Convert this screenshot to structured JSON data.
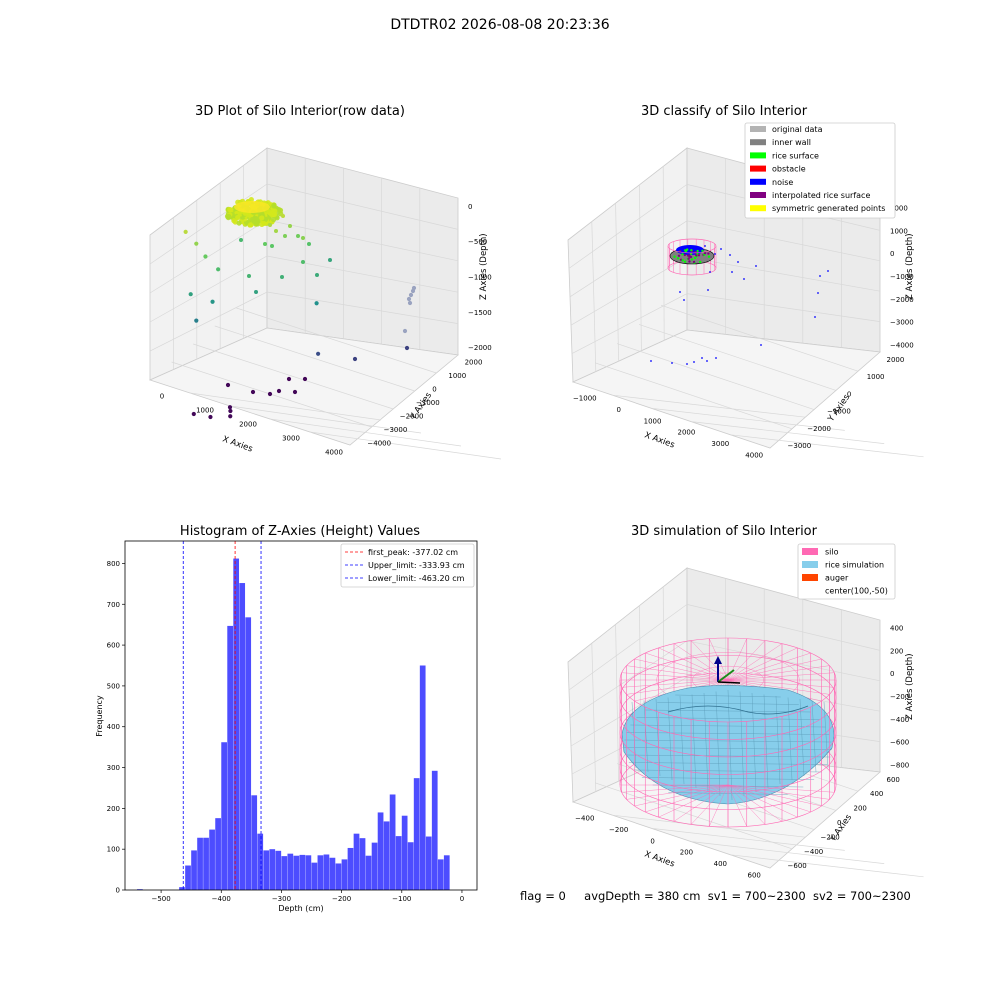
{
  "figure": {
    "title": "DTDTR02 2026-08-08 20:23:36",
    "status": {
      "flag": "flag = 0",
      "avg_depth": "avgDepth = 380 cm",
      "sv1": "sv1 = 700~2300",
      "sv2": "sv2 = 700~2300"
    }
  },
  "chart_data": [
    {
      "type": "scatter",
      "projection": "3d",
      "title": "3D Plot of Silo Interior(row data)",
      "xlabel": "X Axies",
      "ylabel": "Y Axies",
      "zlabel": "Z Axies (Depth)",
      "x_ticks": [
        "0",
        "1000",
        "2000",
        "3000",
        "4000"
      ],
      "y_ticks": [
        "−4000",
        "−3000",
        "−2000",
        "−1000",
        "0",
        "1000",
        "2000"
      ],
      "z_ticks": [
        "−2000",
        "−1500",
        "−1000",
        "−500",
        "0"
      ],
      "colormap": "viridis",
      "cluster_color": "#d4e81c",
      "points": [
        {
          "x": 300,
          "y": 0,
          "z": -220
        },
        {
          "x": 600,
          "y": 0,
          "z": -350
        },
        {
          "x": 800,
          "y": 100,
          "z": -500
        },
        {
          "x": 1100,
          "y": 200,
          "z": -650
        },
        {
          "x": 500,
          "y": -100,
          "z": -900
        },
        {
          "x": 1000,
          "y": 100,
          "z": -1000
        },
        {
          "x": 600,
          "y": 0,
          "z": -1200
        },
        {
          "x": 3700,
          "y": 500,
          "z": -1050
        },
        {
          "x": 3800,
          "y": 400,
          "z": -1600
        },
        {
          "x": 1800,
          "y": -2200,
          "z": -2050
        },
        {
          "x": 2300,
          "y": -1300,
          "z": -2050
        },
        {
          "x": 2600,
          "y": -1800,
          "z": -2050
        },
        {
          "x": 3000,
          "y": -2500,
          "z": -2050
        },
        {
          "x": 2500,
          "y": -2600,
          "z": -2050
        }
      ]
    },
    {
      "type": "scatter",
      "projection": "3d",
      "title": "3D classify of Silo Interior",
      "xlabel": "X Axies",
      "ylabel": "Y Axies",
      "zlabel": "Z Axies (Depth)",
      "x_ticks": [
        "−1000",
        "0",
        "1000",
        "2000",
        "3000",
        "4000"
      ],
      "y_ticks": [
        "−3000",
        "−2000",
        "−1000",
        "0",
        "1000",
        "2000"
      ],
      "z_ticks": [
        "−4000",
        "−3000",
        "−2000",
        "−1000",
        "0",
        "1000",
        "2000"
      ],
      "legend_position": "top-right",
      "legend": [
        {
          "label": "original data",
          "color": "#b3b3b3"
        },
        {
          "label": "inner wall",
          "color": "#808080"
        },
        {
          "label": "rice surface",
          "color": "#00ff00"
        },
        {
          "label": "obstacle",
          "color": "#ff0000"
        },
        {
          "label": "noise",
          "color": "#0000ff"
        },
        {
          "label": "interpolated rice surface",
          "color": "#800080"
        },
        {
          "label": "symmetric generated points",
          "color": "#ffff00"
        }
      ]
    },
    {
      "type": "bar",
      "subtype": "histogram",
      "title": "Histogram of Z-Axies (Height) Values",
      "xlabel": "Depth (cm)",
      "ylabel": "Frequency",
      "xlim": [
        -560,
        25
      ],
      "ylim": [
        0,
        855
      ],
      "x_ticks": [
        -500,
        -400,
        -300,
        -200,
        -100,
        0
      ],
      "y_ticks": [
        0,
        100,
        200,
        300,
        400,
        500,
        600,
        700,
        800
      ],
      "bin_width": 10,
      "bar_color": "#4d4dff",
      "bins_start": [
        -540,
        -530,
        -520,
        -510,
        -500,
        -490,
        -480,
        -470,
        -460,
        -450,
        -440,
        -430,
        -420,
        -410,
        -400,
        -390,
        -380,
        -370,
        -360,
        -350,
        -340,
        -330,
        -320,
        -310,
        -300,
        -290,
        -280,
        -270,
        -260,
        -250,
        -240,
        -230,
        -220,
        -210,
        -200,
        -190,
        -180,
        -170,
        -160,
        -150,
        -140,
        -130,
        -120,
        -110,
        -100,
        -90,
        -80,
        -70,
        -60,
        -50,
        -40,
        -30,
        -20,
        -10
      ],
      "counts": [
        2,
        0,
        0,
        0,
        0,
        0,
        0,
        7,
        60,
        97,
        128,
        128,
        148,
        176,
        362,
        647,
        812,
        752,
        668,
        232,
        138,
        97,
        100,
        96,
        83,
        89,
        84,
        86,
        85,
        67,
        85,
        87,
        79,
        65,
        75,
        103,
        138,
        127,
        84,
        116,
        190,
        168,
        234,
        132,
        182,
        117,
        274,
        550,
        131,
        292,
        75,
        85,
        0,
        0
      ],
      "lines": [
        {
          "label": "first_peak: -377.02 cm",
          "x": -377.02,
          "color": "#ff0000"
        },
        {
          "label": "Upper_limit: -333.93 cm",
          "x": -333.93,
          "color": "#0000ff"
        },
        {
          "label": "Lower_limit: -463.20 cm",
          "x": -463.2,
          "color": "#0000ff"
        }
      ],
      "legend_position": "top-right"
    },
    {
      "type": "scatter",
      "projection": "3d",
      "title": "3D simulation of Silo Interior",
      "xlabel": "X Axies",
      "ylabel": "Y Axies",
      "zlabel": "Z Axies (Depth)",
      "x_ticks": [
        "−400",
        "−200",
        "0",
        "200",
        "400",
        "600"
      ],
      "y_ticks": [
        "−600",
        "−400",
        "−200",
        "0",
        "200",
        "400",
        "600"
      ],
      "z_ticks": [
        "−800",
        "−600",
        "−400",
        "−200",
        "0",
        "200",
        "400"
      ],
      "legend_position": "top-right",
      "legend": [
        {
          "label": "silo",
          "color": "#ff69b4"
        },
        {
          "label": "rice simulation",
          "color": "#87ceeb"
        },
        {
          "label": "auger",
          "color": "#ff4500"
        },
        {
          "label": "center(100,-50)",
          "color": ""
        }
      ]
    }
  ]
}
